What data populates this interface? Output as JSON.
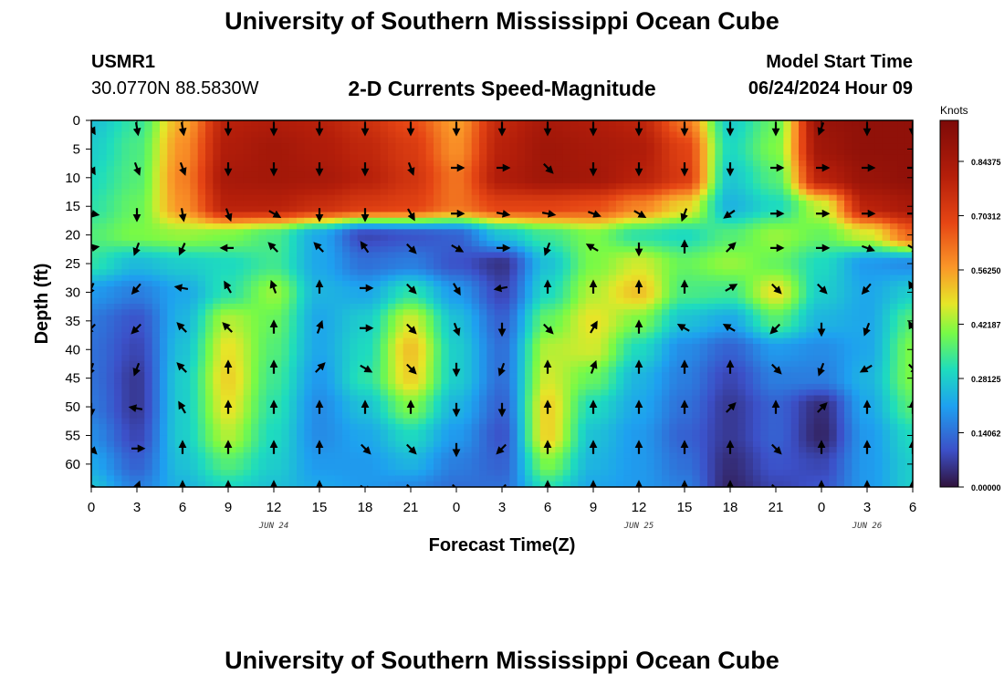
{
  "header": {
    "title": "University of Southern Mississippi Ocean Cube",
    "station_id": "USMR1",
    "coordinates": "30.0770N  88.5830W",
    "subtitle": "2-D Currents Speed-Magnitude",
    "model_start_label": "Model Start Time",
    "model_start_value": "06/24/2024 Hour 09",
    "footer_title": "University of Southern Mississippi Ocean Cube"
  },
  "chart_data": {
    "type": "heatmap",
    "title": "2-D Currents Speed-Magnitude",
    "xlabel": "Forecast Time(Z)",
    "ylabel": "Depth (ft)",
    "x_tick_labels": [
      "0",
      "3",
      "6",
      "9",
      "12",
      "15",
      "18",
      "21",
      "0",
      "3",
      "6",
      "9",
      "12",
      "15",
      "18",
      "21",
      "0",
      "3",
      "6"
    ],
    "x_hours": [
      0,
      3,
      6,
      9,
      12,
      15,
      18,
      21,
      24,
      27,
      30,
      33,
      36,
      39,
      42,
      45,
      48,
      51,
      54
    ],
    "date_labels": [
      {
        "label": "JUN 24",
        "hour": 12
      },
      {
        "label": "JUN 25",
        "hour": 36
      },
      {
        "label": "JUN 26",
        "hour": 51
      }
    ],
    "y_ticks": [
      0,
      5,
      10,
      15,
      20,
      25,
      30,
      35,
      40,
      45,
      50,
      55,
      60
    ],
    "ylim": [
      64,
      0
    ],
    "xlim": [
      0,
      54
    ],
    "colorbar": {
      "unit": "Knots",
      "ticks": [
        "0.84375",
        "0.70312",
        "0.56250",
        "0.42187",
        "0.28125",
        "0.14062",
        "0.00000"
      ],
      "tick_values": [
        0.84375,
        0.703125,
        0.5625,
        0.421875,
        0.28125,
        0.140625,
        0.0
      ],
      "range": [
        0,
        0.95
      ]
    },
    "speed_sample_hours": [
      0,
      3,
      6,
      9,
      12,
      15,
      18,
      21,
      24,
      27,
      30,
      33,
      36,
      39,
      42,
      45,
      48,
      51,
      54
    ],
    "speed_sample_depths": [
      0,
      5,
      10,
      15,
      20,
      25,
      30,
      35,
      40,
      45,
      50,
      55,
      60,
      64
    ],
    "speed_knots": [
      [
        0.26,
        0.33,
        0.55,
        0.8,
        0.82,
        0.8,
        0.75,
        0.68,
        0.56,
        0.78,
        0.84,
        0.82,
        0.79,
        0.62,
        0.28,
        0.38,
        0.88,
        0.9,
        0.9
      ],
      [
        0.28,
        0.35,
        0.58,
        0.82,
        0.85,
        0.82,
        0.78,
        0.72,
        0.58,
        0.8,
        0.86,
        0.84,
        0.82,
        0.7,
        0.3,
        0.4,
        0.86,
        0.9,
        0.9
      ],
      [
        0.3,
        0.36,
        0.6,
        0.84,
        0.85,
        0.84,
        0.8,
        0.74,
        0.62,
        0.82,
        0.86,
        0.85,
        0.8,
        0.72,
        0.27,
        0.36,
        0.8,
        0.88,
        0.9
      ],
      [
        0.32,
        0.38,
        0.58,
        0.8,
        0.8,
        0.76,
        0.72,
        0.7,
        0.62,
        0.7,
        0.7,
        0.68,
        0.6,
        0.5,
        0.24,
        0.3,
        0.45,
        0.8,
        0.84
      ],
      [
        0.36,
        0.4,
        0.42,
        0.4,
        0.35,
        0.22,
        0.08,
        0.1,
        0.12,
        0.26,
        0.34,
        0.4,
        0.32,
        0.3,
        0.36,
        0.42,
        0.38,
        0.46,
        0.64
      ],
      [
        0.32,
        0.25,
        0.28,
        0.3,
        0.34,
        0.22,
        0.14,
        0.16,
        0.1,
        0.05,
        0.26,
        0.4,
        0.46,
        0.38,
        0.42,
        0.38,
        0.3,
        0.2,
        0.18
      ],
      [
        0.2,
        0.16,
        0.22,
        0.32,
        0.42,
        0.24,
        0.22,
        0.32,
        0.2,
        0.08,
        0.3,
        0.44,
        0.52,
        0.35,
        0.34,
        0.48,
        0.28,
        0.22,
        0.28
      ],
      [
        0.15,
        0.1,
        0.24,
        0.44,
        0.38,
        0.22,
        0.28,
        0.46,
        0.26,
        0.12,
        0.38,
        0.48,
        0.4,
        0.26,
        0.22,
        0.36,
        0.24,
        0.22,
        0.36
      ],
      [
        0.14,
        0.08,
        0.26,
        0.48,
        0.36,
        0.22,
        0.3,
        0.52,
        0.28,
        0.14,
        0.44,
        0.46,
        0.3,
        0.18,
        0.12,
        0.2,
        0.18,
        0.22,
        0.4
      ],
      [
        0.14,
        0.06,
        0.28,
        0.5,
        0.34,
        0.2,
        0.32,
        0.5,
        0.28,
        0.14,
        0.46,
        0.38,
        0.24,
        0.16,
        0.08,
        0.16,
        0.16,
        0.24,
        0.4
      ],
      [
        0.15,
        0.06,
        0.28,
        0.48,
        0.32,
        0.18,
        0.26,
        0.4,
        0.24,
        0.12,
        0.5,
        0.3,
        0.22,
        0.14,
        0.06,
        0.12,
        0.04,
        0.22,
        0.36
      ],
      [
        0.18,
        0.08,
        0.28,
        0.44,
        0.3,
        0.18,
        0.22,
        0.3,
        0.2,
        0.1,
        0.5,
        0.26,
        0.2,
        0.12,
        0.06,
        0.12,
        0.03,
        0.2,
        0.3
      ],
      [
        0.22,
        0.12,
        0.26,
        0.36,
        0.28,
        0.2,
        0.2,
        0.24,
        0.16,
        0.12,
        0.4,
        0.24,
        0.2,
        0.14,
        0.04,
        0.1,
        0.08,
        0.2,
        0.28
      ],
      [
        0.26,
        0.16,
        0.24,
        0.3,
        0.26,
        0.22,
        0.2,
        0.18,
        0.14,
        0.14,
        0.32,
        0.22,
        0.2,
        0.16,
        0.03,
        0.08,
        0.1,
        0.2,
        0.28
      ]
    ],
    "vector_sample_hours": [
      0,
      3,
      6,
      9,
      12,
      15,
      18,
      21,
      24,
      27,
      30,
      33,
      36,
      39,
      42,
      45,
      48,
      51,
      54
    ],
    "vector_sample_depths": [
      0,
      7,
      15,
      21,
      28,
      35,
      42,
      49,
      56,
      63
    ],
    "vector_direction_deg": [
      [
        150,
        170,
        170,
        180,
        180,
        180,
        180,
        180,
        180,
        180,
        180,
        180,
        180,
        180,
        180,
        180,
        200,
        180,
        180
      ],
      [
        150,
        160,
        160,
        180,
        180,
        180,
        180,
        160,
        90,
        90,
        135,
        180,
        180,
        180,
        180,
        90,
        90,
        90,
        90
      ],
      [
        100,
        180,
        170,
        160,
        120,
        180,
        180,
        150,
        90,
        100,
        100,
        110,
        120,
        200,
        235,
        90,
        90,
        90,
        90
      ],
      [
        80,
        200,
        205,
        270,
        315,
        315,
        325,
        135,
        120,
        90,
        200,
        300,
        180,
        0,
        45,
        90,
        90,
        110,
        120
      ],
      [
        205,
        220,
        280,
        330,
        340,
        0,
        90,
        135,
        150,
        260,
        0,
        0,
        0,
        0,
        60,
        135,
        135,
        220,
        330
      ],
      [
        225,
        225,
        315,
        315,
        0,
        20,
        90,
        135,
        160,
        180,
        135,
        30,
        0,
        300,
        300,
        225,
        180,
        200,
        330
      ],
      [
        200,
        200,
        315,
        0,
        0,
        45,
        120,
        135,
        180,
        200,
        0,
        20,
        0,
        0,
        0,
        135,
        200,
        240,
        135
      ],
      [
        180,
        280,
        330,
        0,
        0,
        0,
        0,
        0,
        180,
        180,
        0,
        0,
        0,
        0,
        45,
        0,
        45,
        0,
        0
      ],
      [
        135,
        90,
        0,
        0,
        0,
        0,
        135,
        135,
        180,
        225,
        0,
        0,
        0,
        0,
        0,
        135,
        0,
        0,
        0
      ],
      [
        90,
        20,
        0,
        0,
        0,
        0,
        120,
        135,
        135,
        225,
        0,
        0,
        0,
        0,
        0,
        135,
        0,
        0,
        0
      ]
    ],
    "legend": "right"
  }
}
